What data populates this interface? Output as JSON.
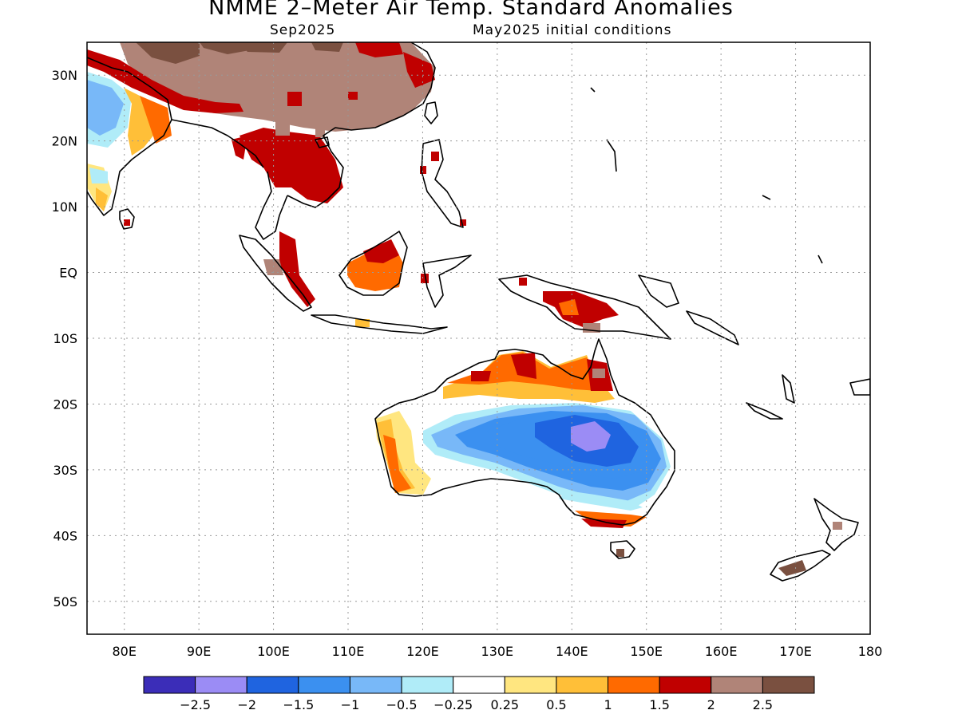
{
  "title": "NMME 2–Meter Air Temp. Standard Anomalies",
  "subtitle_left": "Sep2025",
  "subtitle_right": "May2025 initial conditions",
  "lat_labels": [
    "30N",
    "20N",
    "10N",
    "EQ",
    "10S",
    "20S",
    "30S",
    "40S",
    "50S"
  ],
  "lat_values": [
    30,
    20,
    10,
    0,
    -10,
    -20,
    -30,
    -40,
    -50
  ],
  "lon_labels": [
    "80E",
    "90E",
    "100E",
    "110E",
    "120E",
    "130E",
    "140E",
    "150E",
    "160E",
    "170E",
    "180"
  ],
  "lon_values": [
    80,
    90,
    100,
    110,
    120,
    130,
    140,
    150,
    160,
    170,
    180
  ],
  "lon_range": [
    75,
    180
  ],
  "lat_range": [
    -55,
    35
  ],
  "colorbar": {
    "colors": [
      "#3b2db8",
      "#9b8cf5",
      "#1f64e0",
      "#3b90f0",
      "#78b8f8",
      "#b0ecf8",
      "#ffffff",
      "#ffe680",
      "#ffbf38",
      "#ff6a00",
      "#c00000",
      "#b08478",
      "#7a5040"
    ],
    "labels": [
      "−2.5",
      "−2",
      "−1.5",
      "−1",
      "−0.5",
      "−0.25",
      "0.25",
      "0.5",
      "1",
      "1.5",
      "2",
      "2.5"
    ]
  }
}
